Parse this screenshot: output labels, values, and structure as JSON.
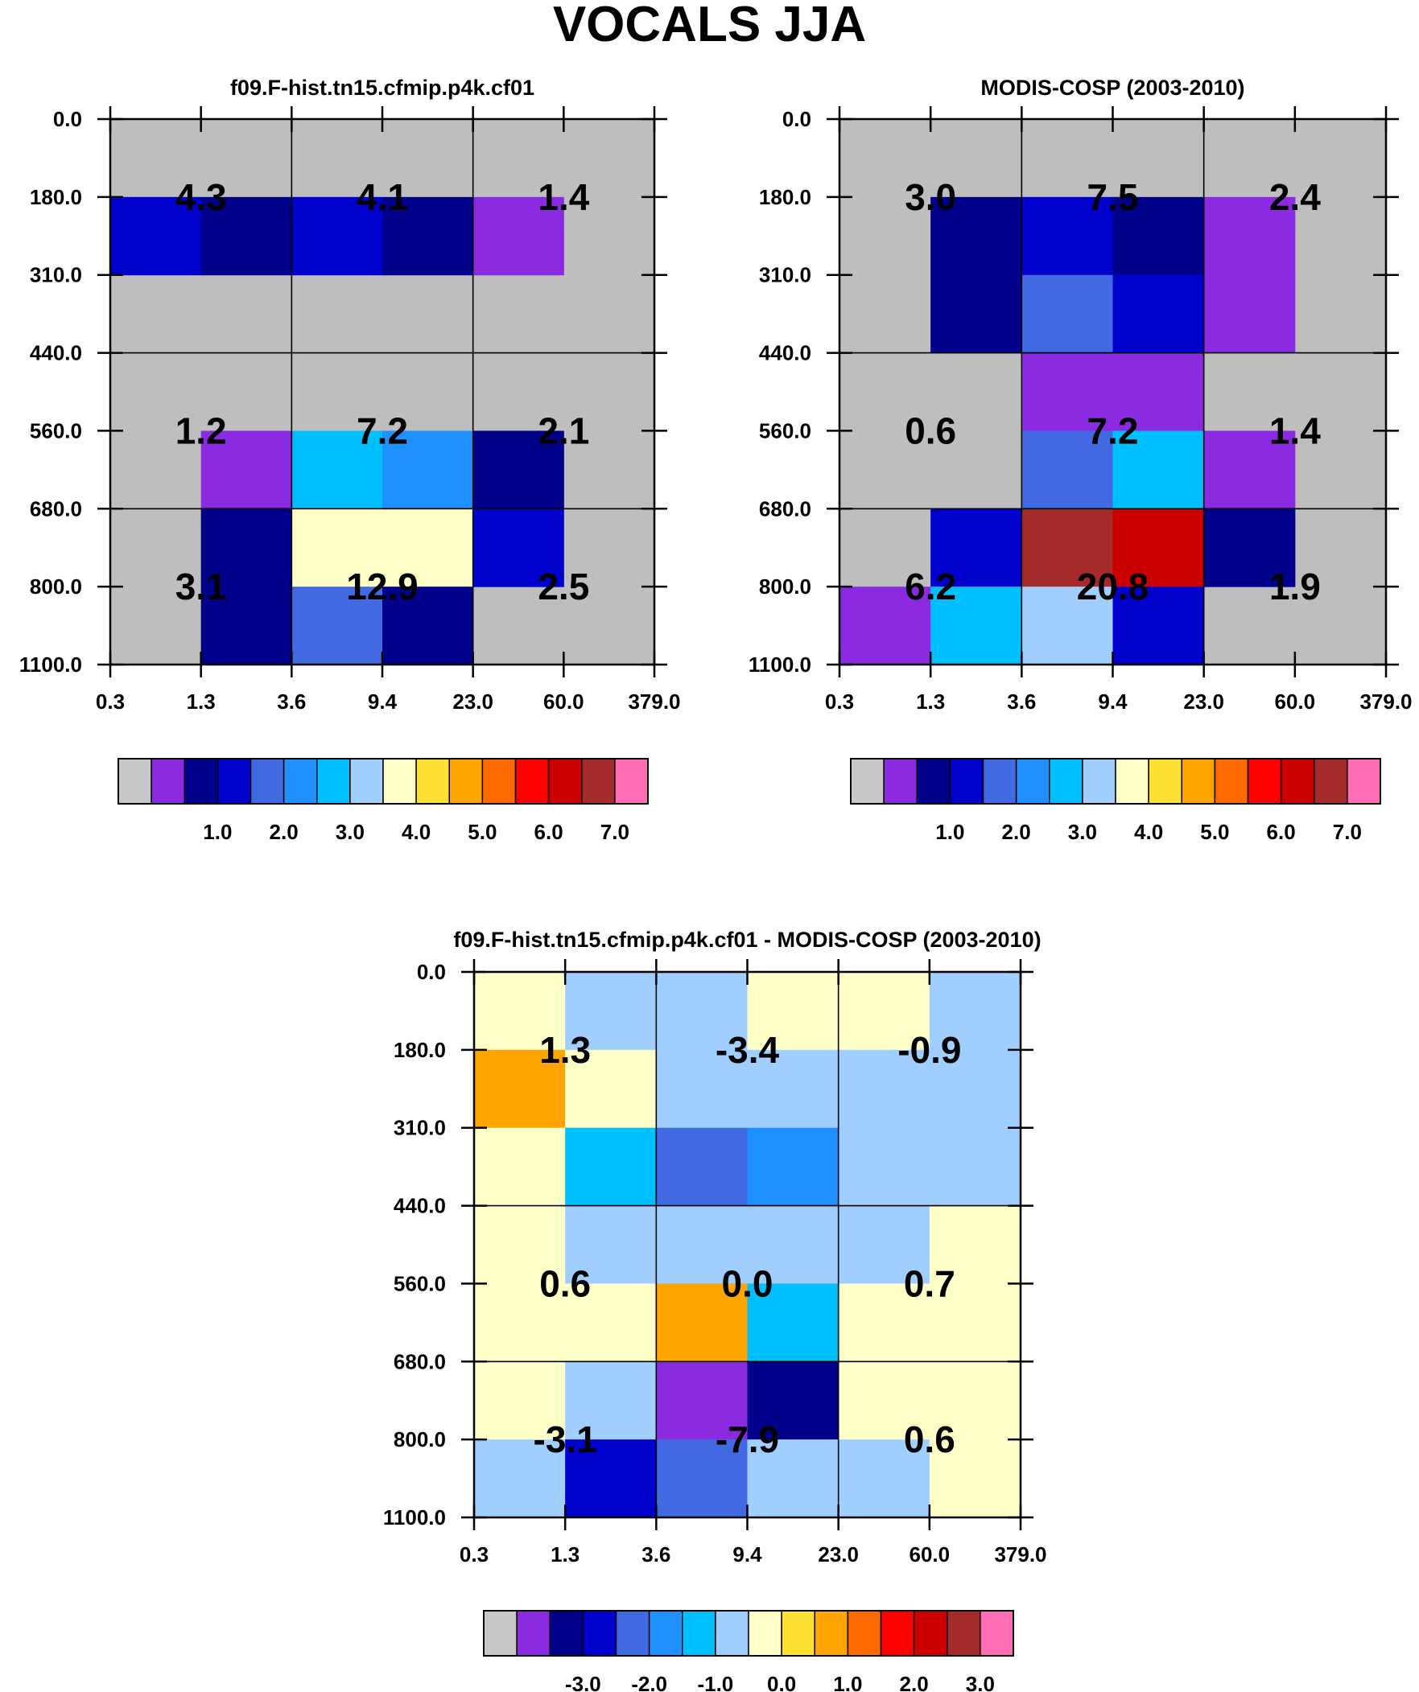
{
  "title": "VOCALS JJA",
  "chart_data": [
    {
      "type": "heatmap",
      "title": "f09.F-hist.tn15.cfmip.p4k.cf01",
      "x_tick_labels": [
        "0.3",
        "1.3",
        "3.6",
        "9.4",
        "23.0",
        "60.0",
        "379.0"
      ],
      "y_tick_labels": [
        "0.0",
        "180.0",
        "310.0",
        "440.0",
        "560.0",
        "680.0",
        "800.0",
        "1100.0"
      ],
      "cell_color_bins": [
        [
          0,
          0,
          0,
          0,
          0,
          0
        ],
        [
          3,
          2,
          3,
          2,
          1,
          0
        ],
        [
          0,
          0,
          0,
          0,
          0,
          0
        ],
        [
          0,
          0,
          0,
          0,
          0,
          0
        ],
        [
          0,
          1,
          6,
          5,
          2,
          0
        ],
        [
          0,
          2,
          8,
          8,
          3,
          0
        ],
        [
          0,
          2,
          4,
          2,
          0,
          0
        ]
      ],
      "block_values": [
        [
          "4.3",
          "4.1",
          "1.4"
        ],
        [
          "1.2",
          "7.2",
          "2.1"
        ],
        [
          "3.1",
          "12.9",
          "2.5"
        ]
      ],
      "colorbar_labels": [
        "1.0",
        "2.0",
        "3.0",
        "4.0",
        "5.0",
        "6.0",
        "7.0"
      ]
    },
    {
      "type": "heatmap",
      "title": "MODIS-COSP (2003-2010)",
      "x_tick_labels": [
        "0.3",
        "1.3",
        "3.6",
        "9.4",
        "23.0",
        "60.0",
        "379.0"
      ],
      "y_tick_labels": [
        "0.0",
        "180.0",
        "310.0",
        "440.0",
        "560.0",
        "680.0",
        "800.0",
        "1100.0"
      ],
      "cell_color_bins": [
        [
          0,
          0,
          0,
          0,
          0,
          0
        ],
        [
          0,
          2,
          3,
          2,
          1,
          0
        ],
        [
          0,
          2,
          4,
          3,
          1,
          0
        ],
        [
          0,
          0,
          1,
          1,
          0,
          0
        ],
        [
          0,
          0,
          4,
          6,
          1,
          0
        ],
        [
          0,
          3,
          14,
          13,
          2,
          0
        ],
        [
          1,
          6,
          7,
          3,
          0,
          0
        ]
      ],
      "block_values": [
        [
          "3.0",
          "7.5",
          "2.4"
        ],
        [
          "0.6",
          "7.2",
          "1.4"
        ],
        [
          "6.2",
          "20.8",
          "1.9"
        ]
      ],
      "colorbar_labels": [
        "1.0",
        "2.0",
        "3.0",
        "4.0",
        "5.0",
        "6.0",
        "7.0"
      ]
    },
    {
      "type": "heatmap",
      "title": "f09.F-hist.tn15.cfmip.p4k.cf01 - MODIS-COSP (2003-2010)",
      "x_tick_labels": [
        "0.3",
        "1.3",
        "3.6",
        "9.4",
        "23.0",
        "60.0",
        "379.0"
      ],
      "y_tick_labels": [
        "0.0",
        "180.0",
        "310.0",
        "440.0",
        "560.0",
        "680.0",
        "800.0",
        "1100.0"
      ],
      "cell_color_bins": [
        [
          8,
          7,
          7,
          8,
          8,
          7
        ],
        [
          10,
          8,
          7,
          7,
          7,
          7
        ],
        [
          8,
          6,
          4,
          5,
          7,
          7
        ],
        [
          8,
          7,
          7,
          7,
          7,
          8
        ],
        [
          8,
          8,
          10,
          6,
          8,
          8
        ],
        [
          8,
          7,
          1,
          2,
          8,
          8
        ],
        [
          7,
          3,
          4,
          7,
          7,
          8
        ]
      ],
      "block_values": [
        [
          "1.3",
          "-3.4",
          "-0.9"
        ],
        [
          "0.6",
          "0.0",
          "0.7"
        ],
        [
          "-3.1",
          "-7.9",
          "0.6"
        ]
      ],
      "colorbar_labels": [
        "-3.0",
        "-2.0",
        "-1.0",
        "0.0",
        "1.0",
        "2.0",
        "3.0"
      ]
    }
  ],
  "colormap": [
    "#C8C8C8",
    "#8A2BE2",
    "#00008B",
    "#0000CD",
    "#4169E1",
    "#1E90FF",
    "#00BFFF",
    "#A0CFFF",
    "#FFFFC8",
    "#FFE034",
    "#FFA500",
    "#FF6A00",
    "#FF0000",
    "#CC0000",
    "#A52A2A",
    "#FF6EB4"
  ],
  "missing_color": "#BEBEBE"
}
